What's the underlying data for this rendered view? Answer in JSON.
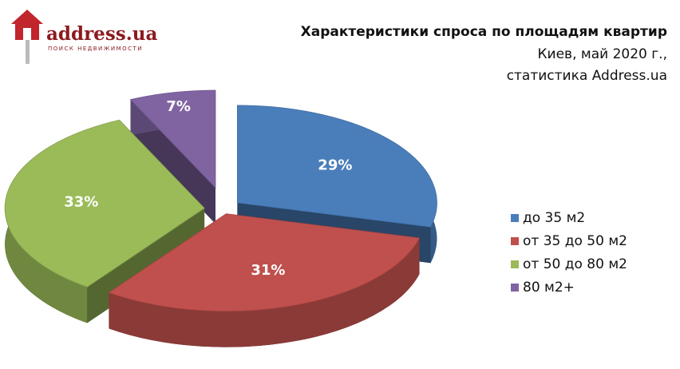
{
  "logo": {
    "name": "address.ua",
    "tagline": "ПОИСК НЕДВИЖИМОСТИ"
  },
  "chart_data": {
    "type": "pie",
    "title": "Характеристики спроса по площадям квартир",
    "subtitle": [
      "Киев, май 2020 г.,",
      "статистика Address.ua"
    ],
    "categories": [
      "до 35 м2",
      "от 35 до 50 м2",
      "от 50 до 80 м2",
      "80 м2+"
    ],
    "values": [
      29,
      31,
      33,
      7
    ],
    "value_labels": [
      "29%",
      "31%",
      "33%",
      "7%"
    ],
    "colors": [
      "#4a7ebb",
      "#c0504d",
      "#9bbb59",
      "#8064a2"
    ],
    "legend": "right"
  }
}
